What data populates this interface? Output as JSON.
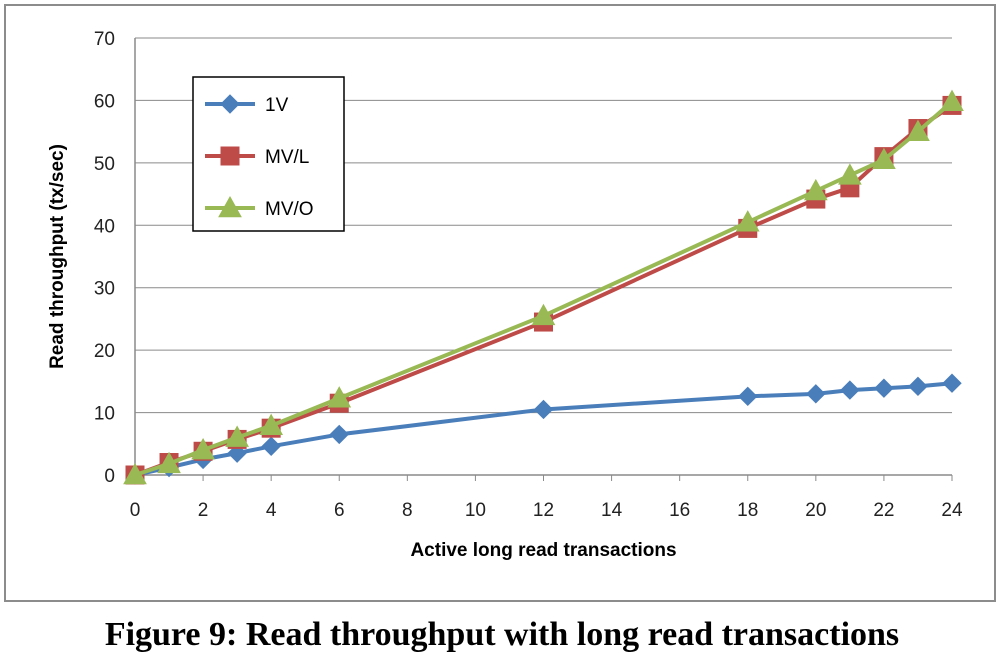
{
  "caption": "Figure 9: Read throughput with long read transactions",
  "chart_data": {
    "type": "line",
    "title": "",
    "xlabel": "Active long read transactions",
    "ylabel": "Read throughput  (tx/sec)",
    "xlim": [
      0,
      24
    ],
    "ylim": [
      0,
      70
    ],
    "xticks": [
      0,
      2,
      4,
      6,
      8,
      10,
      12,
      14,
      16,
      18,
      20,
      22,
      24
    ],
    "yticks": [
      0,
      10,
      20,
      30,
      40,
      50,
      60,
      70
    ],
    "grid": "horizontal",
    "legend_position": "top-left",
    "series": [
      {
        "name": "1V",
        "color": "#4a7ebb",
        "marker": "diamond",
        "x": [
          0,
          1,
          2,
          3,
          4,
          6,
          12,
          18,
          20,
          21,
          22,
          23,
          24
        ],
        "y": [
          0,
          1.2,
          2.5,
          3.5,
          4.6,
          6.5,
          10.5,
          12.6,
          13.0,
          13.6,
          13.9,
          14.2,
          14.7
        ]
      },
      {
        "name": "MV/L",
        "color": "#be4b48",
        "marker": "square",
        "x": [
          0,
          1,
          2,
          3,
          4,
          6,
          12,
          18,
          20,
          21,
          22,
          23,
          24
        ],
        "y": [
          0,
          2.0,
          3.8,
          5.7,
          7.5,
          11.5,
          24.5,
          39.5,
          44.2,
          46.0,
          51.0,
          55.5,
          59.2
        ]
      },
      {
        "name": "MV/O",
        "color": "#98b954",
        "marker": "triangle",
        "x": [
          0,
          1,
          2,
          3,
          4,
          6,
          12,
          18,
          20,
          21,
          22,
          23,
          24
        ],
        "y": [
          0,
          1.8,
          4.0,
          6.0,
          7.9,
          12.3,
          25.5,
          40.5,
          45.5,
          48.0,
          50.5,
          55.0,
          59.8
        ]
      }
    ]
  }
}
